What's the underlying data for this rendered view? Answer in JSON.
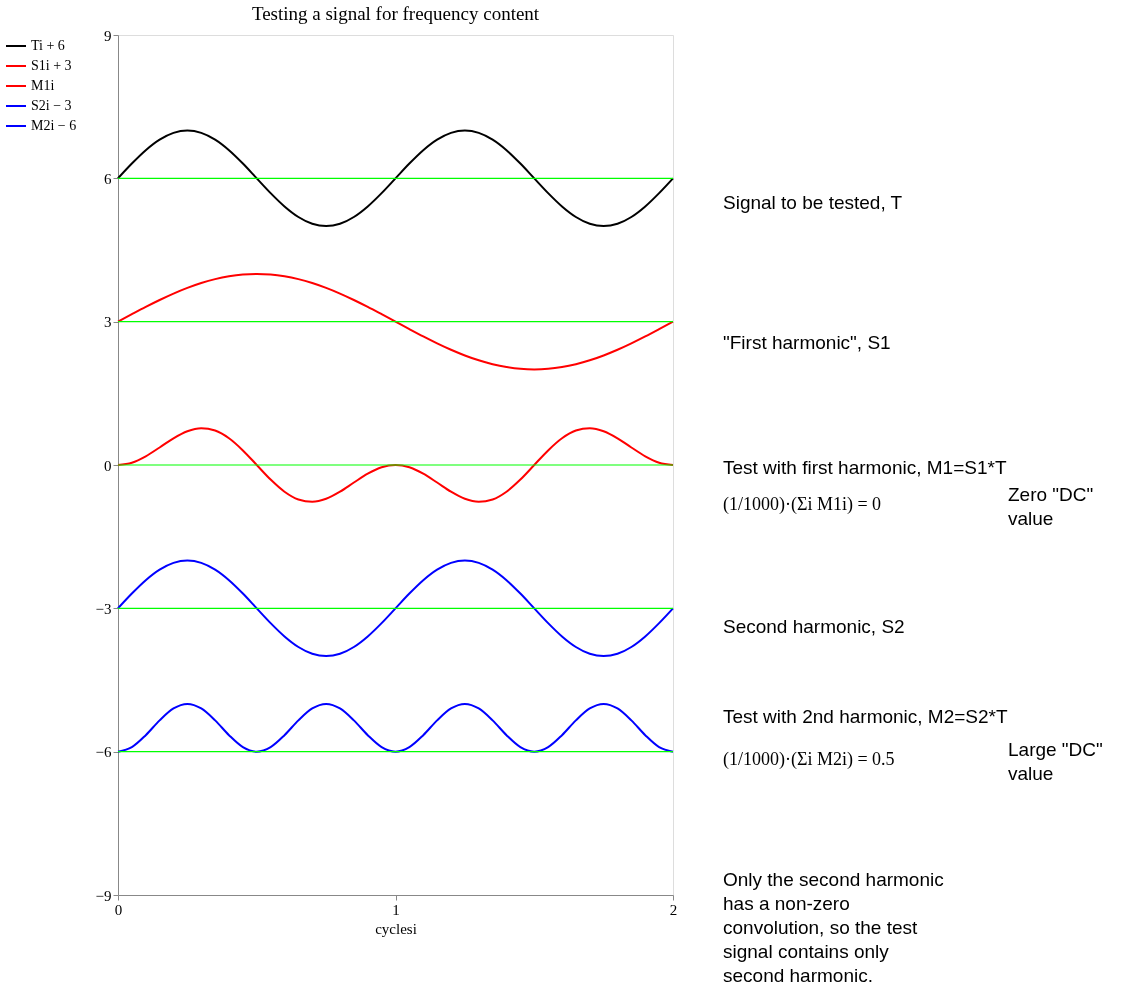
{
  "chart_data": {
    "type": "line",
    "title": "Testing a signal for frequency content",
    "xlabel": "cyclesi",
    "x": [
      0,
      0.05,
      0.1,
      0.15,
      0.2,
      0.25,
      0.3,
      0.35,
      0.4,
      0.45,
      0.5,
      0.55,
      0.6,
      0.65,
      0.7,
      0.75,
      0.8,
      0.85,
      0.9,
      0.95,
      1,
      1.05,
      1.1,
      1.15,
      1.2,
      1.25,
      1.3,
      1.35,
      1.4,
      1.45,
      1.5,
      1.55,
      1.6,
      1.65,
      1.7,
      1.75,
      1.8,
      1.85,
      1.9,
      1.95,
      2
    ],
    "series": [
      {
        "name": "Ti + 6",
        "color": "#000000",
        "values": [
          6,
          6.309,
          6.588,
          6.809,
          6.951,
          7,
          6.951,
          6.809,
          6.588,
          6.309,
          6,
          5.691,
          5.412,
          5.191,
          5.049,
          5,
          5.049,
          5.191,
          5.412,
          5.691,
          6,
          6.309,
          6.588,
          6.809,
          6.951,
          7,
          6.951,
          6.809,
          6.588,
          6.309,
          6,
          5.691,
          5.412,
          5.191,
          5.049,
          5,
          5.049,
          5.191,
          5.412,
          5.691,
          6
        ]
      },
      {
        "name": "S1i + 3",
        "color": "#ff0000",
        "values": [
          3,
          3.156,
          3.309,
          3.454,
          3.588,
          3.707,
          3.809,
          3.891,
          3.951,
          3.988,
          4,
          3.988,
          3.951,
          3.891,
          3.809,
          3.707,
          3.588,
          3.454,
          3.309,
          3.156,
          3,
          2.844,
          2.691,
          2.546,
          2.412,
          2.293,
          2.191,
          2.109,
          2.049,
          2.012,
          2,
          2.012,
          2.049,
          2.109,
          2.191,
          2.293,
          2.412,
          2.546,
          2.691,
          2.844,
          3
        ]
      },
      {
        "name": "M1i",
        "color": "#ff0000",
        "values": [
          0,
          0.048,
          0.182,
          0.367,
          0.559,
          0.707,
          0.769,
          0.721,
          0.559,
          0.305,
          0,
          -0.305,
          -0.559,
          -0.721,
          -0.769,
          -0.707,
          -0.559,
          -0.367,
          -0.182,
          -0.048,
          0,
          -0.048,
          -0.182,
          -0.367,
          -0.559,
          -0.707,
          -0.769,
          -0.721,
          -0.559,
          -0.305,
          0,
          0.305,
          0.559,
          0.721,
          0.769,
          0.707,
          0.559,
          0.367,
          0.182,
          0.048,
          0
        ]
      },
      {
        "name": "S2i − 3",
        "color": "#0000ff",
        "values": [
          -3,
          -2.691,
          -2.412,
          -2.191,
          -2.049,
          -2,
          -2.049,
          -2.191,
          -2.412,
          -2.691,
          -3,
          -3.309,
          -3.588,
          -3.809,
          -3.951,
          -4,
          -3.951,
          -3.809,
          -3.588,
          -3.309,
          -3,
          -2.691,
          -2.412,
          -2.191,
          -2.049,
          -2,
          -2.049,
          -2.191,
          -2.412,
          -2.691,
          -3,
          -3.309,
          -3.588,
          -3.809,
          -3.951,
          -4,
          -3.951,
          -3.809,
          -3.588,
          -3.309,
          -3
        ]
      },
      {
        "name": "M2i − 6",
        "color": "#0000ff",
        "values": [
          -6,
          -5.905,
          -5.655,
          -5.345,
          -5.095,
          -5,
          -5.095,
          -5.345,
          -5.655,
          -5.905,
          -6,
          -5.905,
          -5.655,
          -5.345,
          -5.095,
          -5,
          -5.095,
          -5.345,
          -5.655,
          -5.905,
          -6,
          -5.905,
          -5.655,
          -5.345,
          -5.095,
          -5,
          -5.095,
          -5.345,
          -5.655,
          -5.905,
          -6,
          -5.905,
          -5.655,
          -5.345,
          -5.095,
          -5,
          -5.095,
          -5.345,
          -5.655,
          -5.905,
          -6
        ]
      }
    ],
    "xlim": [
      0,
      2
    ],
    "xticks": [
      0,
      1,
      2
    ],
    "ylim": [
      -9,
      9
    ],
    "yticks": [
      -9,
      -6,
      -3,
      0,
      3,
      6,
      9
    ],
    "ref_lines": [
      {
        "axis": "y",
        "value": 6,
        "color": "#00ff00"
      },
      {
        "axis": "y",
        "value": 3,
        "color": "#00ff00"
      },
      {
        "axis": "y",
        "value": 0,
        "color": "#00ff00"
      },
      {
        "axis": "y",
        "value": -3,
        "color": "#00ff00"
      },
      {
        "axis": "y",
        "value": -6,
        "color": "#00ff00"
      }
    ],
    "annotations": [
      "Signal to be tested, T",
      "\"First harmonic\", S1",
      "Test with first harmonic, M1=S1*T",
      "(1/1000)·(Σi M1i) = 0",
      "Zero \"DC\" value",
      "Second harmonic, S2",
      "Test with 2nd harmonic, M2=S2*T",
      "(1/1000)·(Σi M2i) = 0.5",
      "Large \"DC\" value",
      "Only the second harmonic has a non-zero convolution, so the test signal contains only second harmonic."
    ],
    "grid": false,
    "legend": "left",
    "marker": "none",
    "line_style": "solid"
  }
}
